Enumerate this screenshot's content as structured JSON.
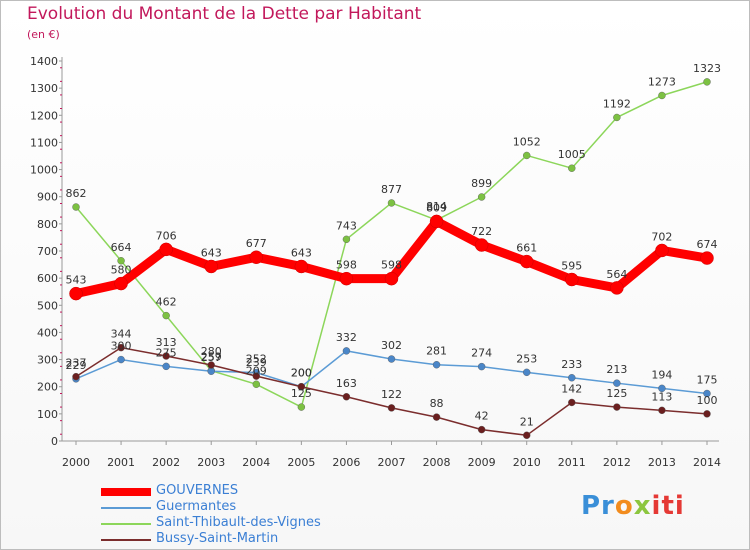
{
  "chart_data": {
    "type": "line",
    "title": "Evolution du Montant de la Dette par Habitant",
    "subtitle": "(en €)",
    "x": [
      "2000",
      "2001",
      "2002",
      "2003",
      "2004",
      "2005",
      "2006",
      "2007",
      "2008",
      "2009",
      "2010",
      "2011",
      "2012",
      "2013",
      "2014"
    ],
    "ylim": [
      0,
      1400
    ],
    "yticks": [
      0,
      100,
      200,
      300,
      400,
      500,
      600,
      700,
      800,
      900,
      1000,
      1100,
      1200,
      1300,
      1400
    ],
    "grid": false,
    "legend_position": "bottom-left",
    "series": [
      {
        "name": "GOUVERNES",
        "color": "#ff0000",
        "marker": "#ff0000",
        "values": [
          543,
          580,
          706,
          643,
          677,
          643,
          598,
          598,
          809,
          722,
          661,
          595,
          564,
          702,
          674
        ]
      },
      {
        "name": "Guermantes",
        "color": "#5b9bd5",
        "marker": "#4a86c8",
        "values": [
          229,
          300,
          275,
          257,
          252,
          200,
          332,
          302,
          281,
          274,
          253,
          233,
          213,
          194,
          175
        ]
      },
      {
        "name": "Saint-Thibault-des-Vignes",
        "color": "#8cd65a",
        "marker": "#7cc142",
        "values": [
          862,
          664,
          462,
          259,
          209,
          125,
          743,
          877,
          814,
          899,
          1052,
          1005,
          1192,
          1273,
          1323
        ]
      },
      {
        "name": "Bussy-Saint-Martin",
        "color": "#7b2d2d",
        "marker": "#6b1f1f",
        "values": [
          237,
          344,
          313,
          280,
          239,
          200,
          163,
          122,
          88,
          42,
          21,
          142,
          125,
          113,
          100
        ]
      }
    ]
  },
  "logo": {
    "parts": [
      "Pr",
      "o",
      "x",
      "iti"
    ]
  }
}
